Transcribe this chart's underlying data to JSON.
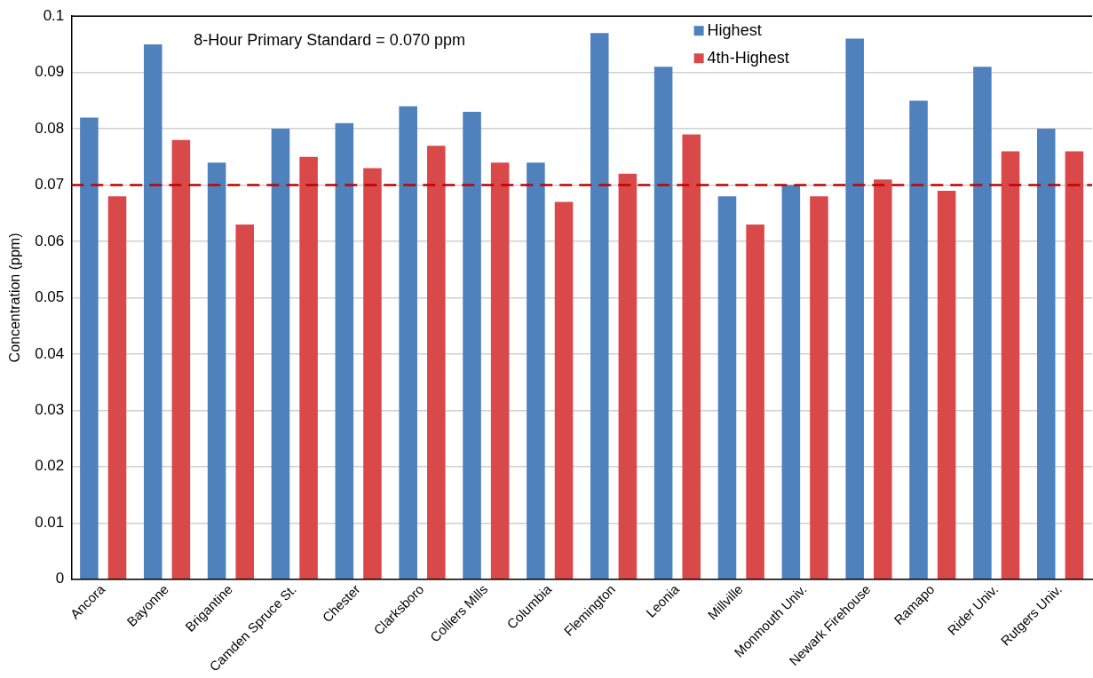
{
  "chart_data": {
    "type": "bar",
    "ylabel": "Concentration (ppm)",
    "categories": [
      "Ancora",
      "Bayonne",
      "Brigantine",
      "Camden Spruce St.",
      "Chester",
      "Clarksboro",
      "Colliers Mills",
      "Columbia",
      "Flemington",
      "Leonia",
      "Millville",
      "Monmouth Univ.",
      "Newark Firehouse",
      "Ramapo",
      "Rider Univ.",
      "Rutgers Univ."
    ],
    "series": [
      {
        "name": "Highest",
        "color": "#4f81bd",
        "values": [
          0.082,
          0.095,
          0.074,
          0.08,
          0.081,
          0.084,
          0.083,
          0.074,
          0.097,
          0.091,
          0.068,
          0.07,
          0.096,
          0.085,
          0.091,
          0.08
        ]
      },
      {
        "name": "4th-Highest",
        "color": "#d9494a",
        "values": [
          0.068,
          0.078,
          0.063,
          0.075,
          0.073,
          0.077,
          0.074,
          0.067,
          0.072,
          0.079,
          0.063,
          0.068,
          0.071,
          0.069,
          0.076,
          0.076
        ]
      }
    ],
    "ylim": [
      0,
      0.1
    ],
    "yticks": [
      0,
      0.01,
      0.02,
      0.03,
      0.04,
      0.05,
      0.06,
      0.07,
      0.08,
      0.09,
      0.1
    ],
    "ref_lines": [
      {
        "axis": "y",
        "value": 0.07,
        "color": "#c00000",
        "line_style": "dashed"
      }
    ],
    "annotations": [
      "8-Hour Primary Standard = 0.070 ppm"
    ],
    "grid": "y",
    "legend": "top"
  }
}
